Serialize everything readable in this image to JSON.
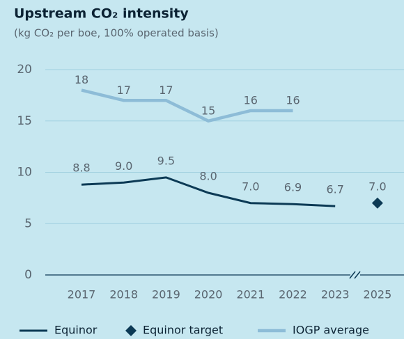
{
  "chart_data": {
    "type": "line",
    "title": "Upstream CO₂ intensity",
    "subtitle": "(kg CO₂ per boe, 100% operated basis)",
    "categories": [
      "2017",
      "2018",
      "2019",
      "2020",
      "2021",
      "2022",
      "2023",
      "2025"
    ],
    "series": [
      {
        "name": "Equinor",
        "color": "#0c3a55",
        "values": [
          8.8,
          9.0,
          9.5,
          8.0,
          7.0,
          6.9,
          6.7,
          null
        ],
        "value_labels": [
          "8.8",
          "9.0",
          "9.5",
          "8.0",
          "7.0",
          "6.9",
          "6.7",
          null
        ]
      },
      {
        "name": "Equinor target",
        "color": "#0c3a55",
        "marker": "diamond",
        "values": [
          null,
          null,
          null,
          null,
          null,
          null,
          null,
          7.0
        ],
        "value_labels": [
          null,
          null,
          null,
          null,
          null,
          null,
          null,
          "7.0"
        ]
      },
      {
        "name": "IOGP average",
        "color": "#8dbcd7",
        "values": [
          18,
          17,
          17,
          15,
          16,
          16,
          null,
          null
        ]
      }
    ],
    "ylim": [
      0,
      20
    ],
    "yticks": [
      0,
      5,
      10,
      15,
      20
    ],
    "grid": true,
    "legend": "bottom"
  }
}
